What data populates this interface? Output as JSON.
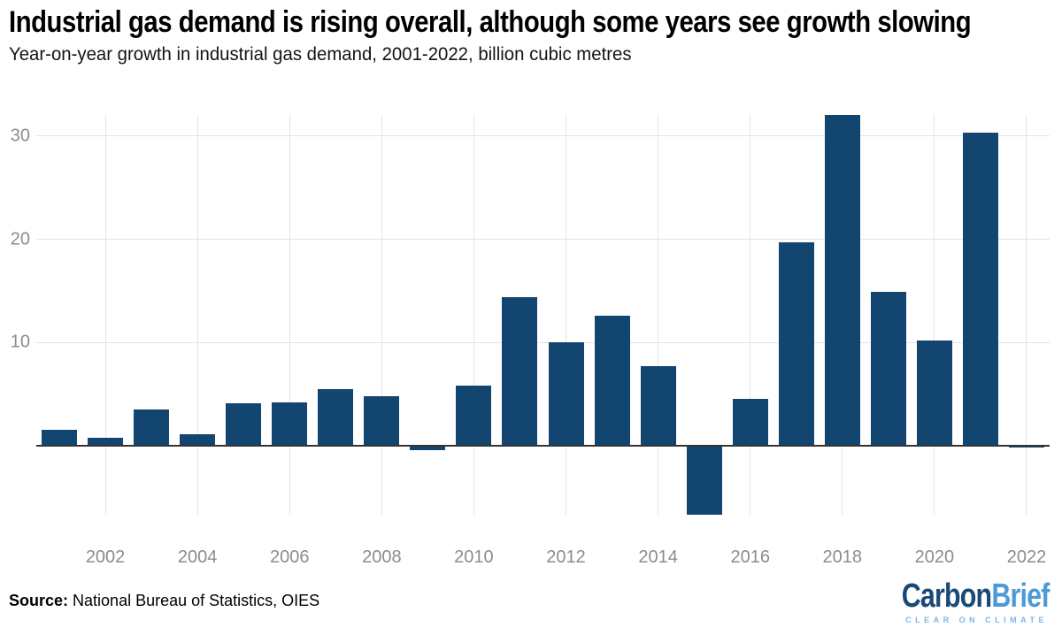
{
  "header": {
    "title": "Industrial gas demand is rising overall, although some years see growth slowing",
    "subtitle": "Year-on-year growth in industrial gas demand, 2001-2022, billion cubic metres"
  },
  "chart_data": {
    "type": "bar",
    "title": "Industrial gas demand is rising overall, although some years see growth slowing",
    "subtitle": "Year-on-year growth in industrial gas demand, 2001-2022, billion cubic metres",
    "xlabel": "",
    "ylabel": "billion cubic metres",
    "categories": [
      2001,
      2002,
      2003,
      2004,
      2005,
      2006,
      2007,
      2008,
      2009,
      2010,
      2011,
      2012,
      2013,
      2014,
      2015,
      2016,
      2017,
      2018,
      2019,
      2020,
      2021,
      2022
    ],
    "values": [
      1.5,
      0.8,
      3.5,
      1.1,
      4.1,
      4.2,
      5.5,
      4.8,
      -0.4,
      5.8,
      14.4,
      10.0,
      12.6,
      7.7,
      -6.7,
      4.5,
      19.7,
      32.0,
      14.9,
      10.2,
      30.3,
      -0.2
    ],
    "y_ticks": [
      10,
      20,
      30
    ],
    "x_tick_years": [
      2002,
      2004,
      2006,
      2008,
      2010,
      2012,
      2014,
      2016,
      2018,
      2020,
      2022
    ],
    "ylim": [
      -6.7,
      32
    ],
    "grid": true,
    "legend": false,
    "bar_color": "#124570",
    "grid_color": "#e4e4e4",
    "axis_line_color": "#333333",
    "tick_label_color": "#8c8c8c"
  },
  "footer": {
    "source_label": "Source:",
    "source_text": " National Bureau of Statistics, OIES",
    "logo": {
      "part1": "Carbon",
      "part2": "Brief",
      "tagline": "CLEAR ON CLIMATE",
      "part1_color": "#174a77",
      "part2_color": "#4d9bd6",
      "tagline_color": "#7fb5e3"
    }
  }
}
